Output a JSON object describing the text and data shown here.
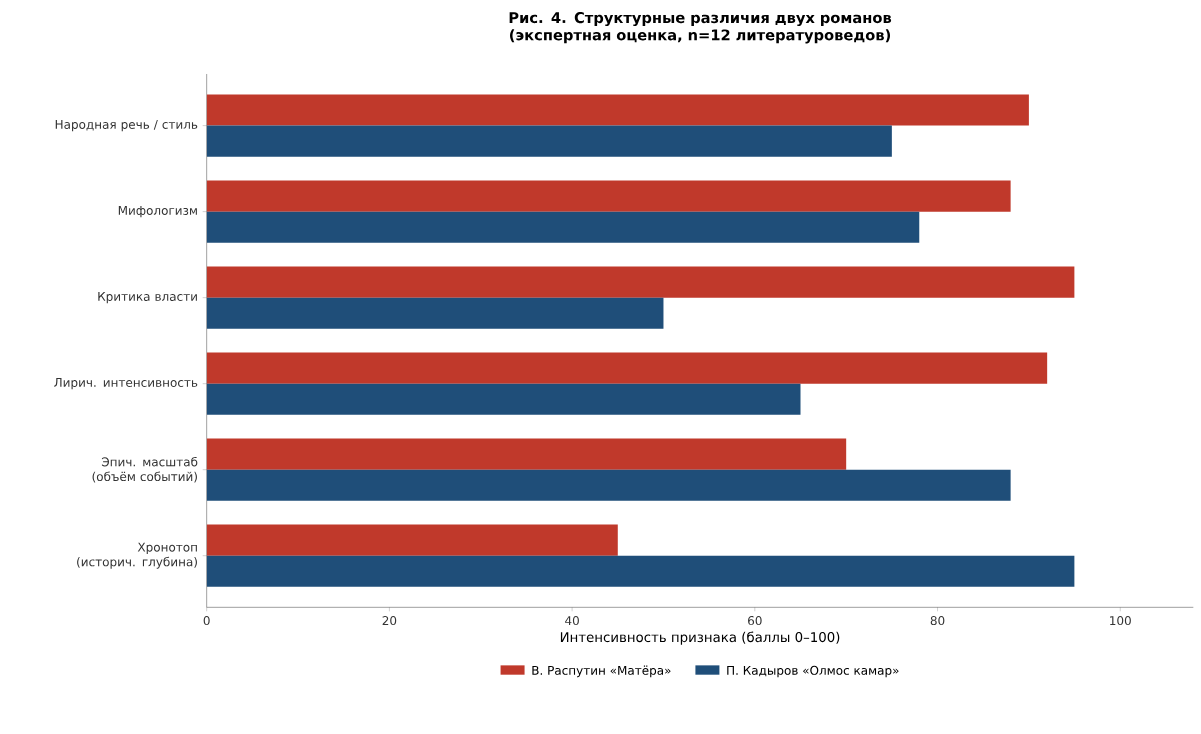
{
  "chart_data": {
    "type": "bar",
    "orientation": "horizontal",
    "title": "Рис. 4. Структурные различия двух романов\n(экспертная оценка, n=12 литературоведов)",
    "xlabel": "Интенсивность признака (баллы 0–100)",
    "categories": [
      "Народная речь / стиль",
      "Мифологизм",
      "Критика власти",
      "Лирич. интенсивность",
      "Эпич. масштаб\n(объём событий)",
      "Хронотоп\n(историч. глубина)"
    ],
    "series": [
      {
        "name": "В. Распутин «Матёра»",
        "color": "#c0392b",
        "values": [
          90,
          88,
          95,
          92,
          70,
          45
        ]
      },
      {
        "name": "П. Кадыров «Олмос камар»",
        "color": "#1f4e79",
        "values": [
          75,
          78,
          50,
          65,
          88,
          95
        ]
      }
    ],
    "xlim": [
      0,
      108
    ],
    "xticks": [
      0,
      20,
      40,
      60,
      80,
      100
    ],
    "grid": false,
    "legend": "bottom"
  }
}
